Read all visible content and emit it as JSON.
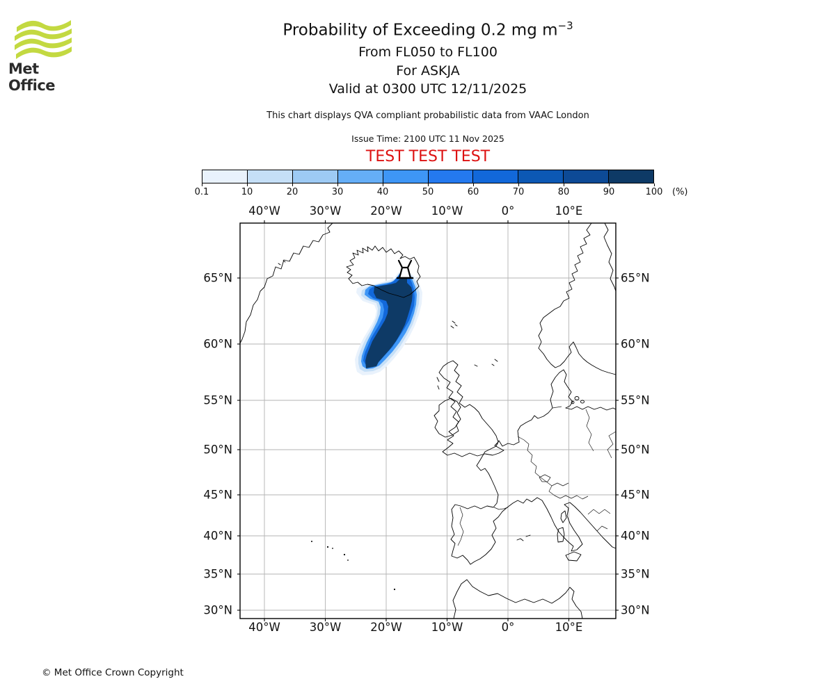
{
  "logo": {
    "text": "Met Office",
    "green": "#c3d941"
  },
  "header": {
    "title_main": "Probability of Exceeding 0.2 mg m",
    "title_sup": "−3",
    "subtitle1": "From FL050 to FL100",
    "subtitle2": "For ASKJA",
    "subtitle3": "Valid at 0300 UTC 12/11/2025",
    "note": "This chart displays QVA compliant probabilistic data from VAAC London",
    "issue_time": "Issue Time: 2100 UTC 11 Nov 2025",
    "test_banner": "TEST TEST TEST",
    "test_color": "#dd1111"
  },
  "colorbar": {
    "tick_labels": [
      "0.1",
      "10",
      "20",
      "30",
      "40",
      "50",
      "60",
      "70",
      "80",
      "90",
      "100"
    ],
    "unit_label": "(%)",
    "colors": [
      "#e9f2fc",
      "#c5dff7",
      "#9dcaf4",
      "#65aef7",
      "#3e96f6",
      "#2479ef",
      "#1268da",
      "#0c58b4",
      "#0d4a96",
      "#0e3a66"
    ]
  },
  "map": {
    "x_tick_labels": [
      "40°W",
      "30°W",
      "20°W",
      "10°W",
      "0°",
      "10°E"
    ],
    "y_tick_labels": [
      "65°N",
      "60°N",
      "55°N",
      "50°N",
      "45°N",
      "40°N",
      "35°N",
      "30°N"
    ]
  },
  "footer": {
    "copyright": "© Met Office Crown Copyright"
  },
  "chart_data": {
    "type": "heatmap",
    "title": "Probability of Exceeding 0.2 mg m⁻³",
    "flight_levels": "From FL050 to FL100",
    "volcano": "ASKJA",
    "valid_time": "0300 UTC 12/11/2025",
    "issue_time": "2100 UTC 11 Nov 2025",
    "data_source": "VAAC London (QVA compliant probabilistic data)",
    "status_banner": "TEST TEST TEST",
    "units": "%",
    "colorscale": {
      "ticks": [
        0.1,
        10,
        20,
        30,
        40,
        50,
        60,
        70,
        80,
        90,
        100
      ],
      "colors": [
        "#e9f2fc",
        "#c5dff7",
        "#9dcaf4",
        "#65aef7",
        "#3e96f6",
        "#2479ef",
        "#1268da",
        "#0c58b4",
        "#0d4a96",
        "#0e3a66"
      ],
      "orientation": "horizontal",
      "position": "above map"
    },
    "map_extent": {
      "lon_min": -44,
      "lon_max": 17.7,
      "lat_min": 28.6,
      "lat_max": 68.6
    },
    "projection": "Mercator-like (latitude spacing shrinks southward)",
    "grid": true,
    "x_ticks_deg": [
      -40,
      -30,
      -20,
      -10,
      0,
      10
    ],
    "y_ticks_deg": [
      65,
      60,
      55,
      50,
      45,
      40,
      35,
      30
    ],
    "plume": {
      "source_name": "ASKJA",
      "source_lon": -16.8,
      "source_lat": 65.0,
      "lon_range": [
        -24,
        -13.5
      ],
      "lat_range": [
        57.5,
        65.5
      ],
      "max_probability_pct": 100,
      "description": "Pixelated blue plume of exceedance probability extending SSW from Askja (north-central Iceland) over the Atlantic to about 58°N 23°W; dark navy 90–100% core with bands decreasing outward to 0.1–10% pale fringe"
    },
    "map_features": [
      "Greenland SE coast",
      "Iceland with volcano symbol at source",
      "Norway",
      "Denmark",
      "Great Britain",
      "Ireland",
      "Faroe Islands",
      "Continental Europe",
      "Iberia",
      "Mediterranean",
      "North Africa",
      "Azores"
    ]
  }
}
